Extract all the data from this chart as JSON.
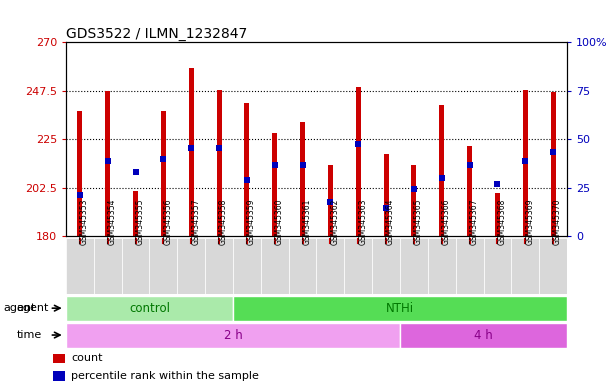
{
  "title": "GDS3522 / ILMN_1232847",
  "samples": [
    "GSM345353",
    "GSM345354",
    "GSM345355",
    "GSM345356",
    "GSM345357",
    "GSM345358",
    "GSM345359",
    "GSM345360",
    "GSM345361",
    "GSM345362",
    "GSM345363",
    "GSM345364",
    "GSM345365",
    "GSM345366",
    "GSM345367",
    "GSM345368",
    "GSM345369",
    "GSM345370"
  ],
  "bar_bottoms": [
    180,
    180,
    180,
    180,
    180,
    180,
    180,
    180,
    180,
    180,
    180,
    180,
    180,
    180,
    180,
    180,
    180,
    180
  ],
  "bar_tops": [
    238,
    247.5,
    201,
    238,
    258,
    248,
    242,
    228,
    233,
    213,
    249,
    218,
    213,
    241,
    222,
    200,
    248,
    247
  ],
  "blue_values_left": [
    199,
    215,
    210,
    216,
    221,
    221,
    206,
    213,
    213,
    196,
    223,
    193,
    202,
    207,
    213,
    204,
    215,
    219
  ],
  "ylim_left": [
    180,
    270
  ],
  "yticks_left": [
    180,
    202.5,
    225,
    247.5,
    270
  ],
  "ytick_labels_left": [
    "180",
    "202.5",
    "225",
    "247.5",
    "270"
  ],
  "ylim_right": [
    0,
    100
  ],
  "yticks_right": [
    0,
    25,
    50,
    75,
    100
  ],
  "ytick_labels_right": [
    "0",
    "25",
    "50",
    "75",
    "100%"
  ],
  "bar_color": "#cc0000",
  "blue_color": "#0000bb",
  "agent_groups": [
    {
      "label": "control",
      "start": 0,
      "end": 6,
      "color": "#aaeaaa"
    },
    {
      "label": "NTHi",
      "start": 6,
      "end": 18,
      "color": "#55dd55"
    }
  ],
  "time_groups": [
    {
      "label": "2 h",
      "start": 0,
      "end": 12,
      "color": "#f0a0f0"
    },
    {
      "label": "4 h",
      "start": 12,
      "end": 18,
      "color": "#dd66dd"
    }
  ],
  "legend_items": [
    {
      "color": "#cc0000",
      "label": "count"
    },
    {
      "color": "#0000bb",
      "label": "percentile rank within the sample"
    }
  ],
  "gridline_color": "#000000",
  "gridline_values": [
    202.5,
    225,
    247.5
  ],
  "bg_color": "#ffffff",
  "plot_bg_color": "#ffffff",
  "tick_label_color_left": "#cc0000",
  "tick_label_color_right": "#0000bb",
  "agent_label_color": "#007700",
  "time_label_color": "#880088",
  "bar_width": 0.18
}
